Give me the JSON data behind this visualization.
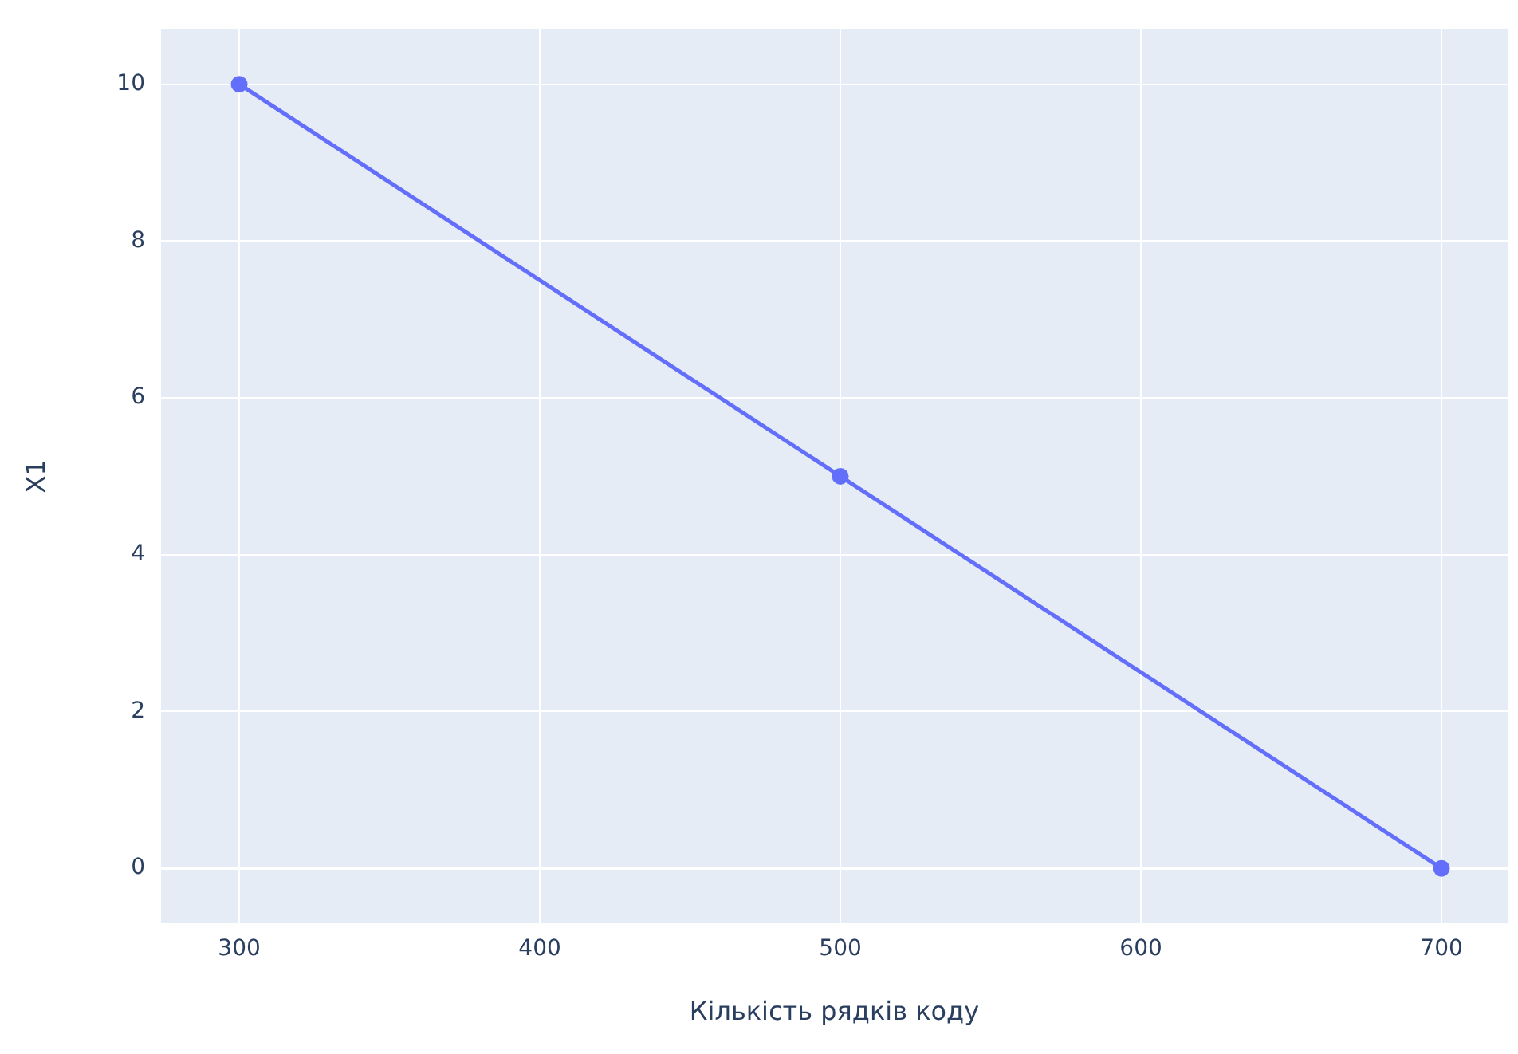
{
  "chart_data": {
    "type": "line",
    "xlabel": "Кількість рядків коду",
    "ylabel": "X1",
    "x": [
      300,
      500,
      700
    ],
    "series": [
      {
        "color": "#636efa",
        "values": [
          10,
          5,
          0
        ]
      }
    ],
    "xlim": [
      274,
      722
    ],
    "ylim": [
      -0.7,
      10.7
    ],
    "xticks": [
      300,
      400,
      500,
      600,
      700
    ],
    "yticks": [
      0,
      2,
      4,
      6,
      8,
      10
    ],
    "grid": true,
    "legend": false,
    "marker": "circle",
    "line_style": "solid"
  }
}
